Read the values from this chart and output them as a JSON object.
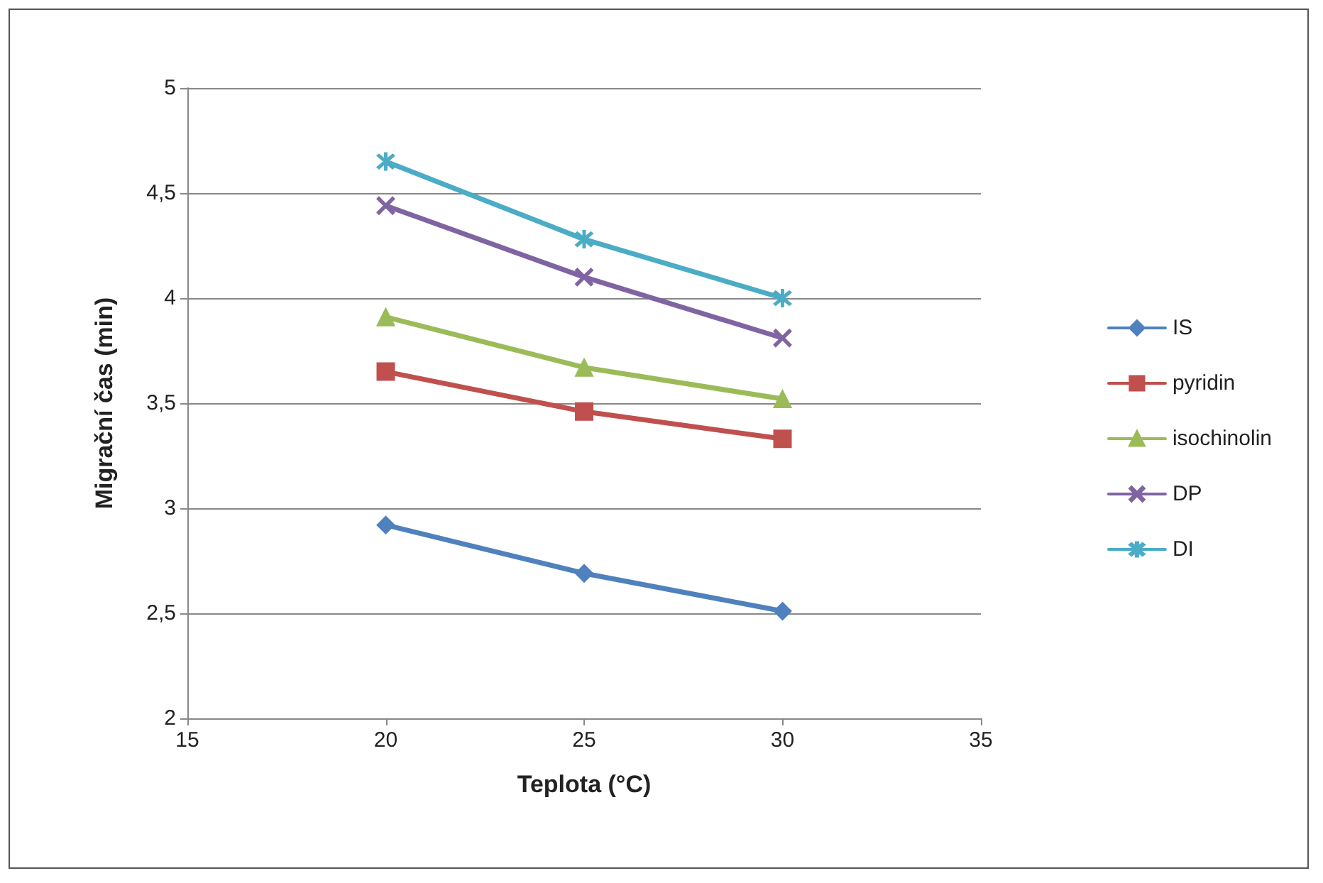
{
  "chart_data": {
    "type": "line",
    "xlabel": "Teplota (°C)",
    "ylabel": "Migrační čas (min)",
    "x": [
      20,
      25,
      30
    ],
    "series": [
      {
        "name": "IS",
        "color": "#4f81bd",
        "marker": "diamond",
        "values": [
          2.92,
          2.69,
          2.51
        ]
      },
      {
        "name": "pyridin",
        "color": "#c0504d",
        "marker": "square",
        "values": [
          3.65,
          3.46,
          3.33
        ]
      },
      {
        "name": "isochinolin",
        "color": "#9bbb59",
        "marker": "triangle",
        "values": [
          3.91,
          3.67,
          3.52
        ]
      },
      {
        "name": "DP",
        "color": "#8064a2",
        "marker": "cross",
        "values": [
          4.44,
          4.1,
          3.81
        ]
      },
      {
        "name": "DI",
        "color": "#4bacc6",
        "marker": "star",
        "values": [
          4.65,
          4.28,
          4.0
        ]
      }
    ],
    "xlim": [
      15,
      35
    ],
    "xticks": [
      15,
      20,
      25,
      30,
      35
    ],
    "ylim": [
      2,
      5
    ],
    "yticks": [
      2,
      {
        "value": 2.5,
        "label": "2,5"
      },
      3,
      {
        "value": 3.5,
        "label": "3,5"
      },
      4,
      {
        "value": 4.5,
        "label": "4,5"
      },
      5
    ],
    "grid": "y",
    "legend": "right",
    "line_style": "solid"
  }
}
